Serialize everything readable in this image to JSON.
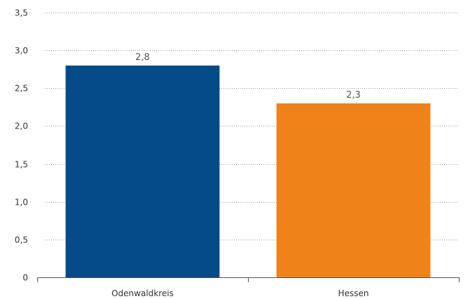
{
  "chart_data": {
    "type": "bar",
    "categories": [
      "Odenwaldkreis",
      "Hessen"
    ],
    "values": [
      2.8,
      2.3
    ],
    "value_labels": [
      "2,8",
      "2,3"
    ],
    "colors": [
      "#044a86",
      "#f0821a"
    ],
    "ylim": [
      0,
      3.5
    ],
    "yticks": [
      0,
      0.5,
      1.0,
      1.5,
      2.0,
      2.5,
      3.0,
      3.5
    ],
    "ytick_labels": [
      "0",
      "0,5",
      "1,0",
      "1,5",
      "2,0",
      "2,5",
      "3,0",
      "3,5"
    ],
    "grid": true,
    "title": "",
    "xlabel": "",
    "ylabel": ""
  }
}
